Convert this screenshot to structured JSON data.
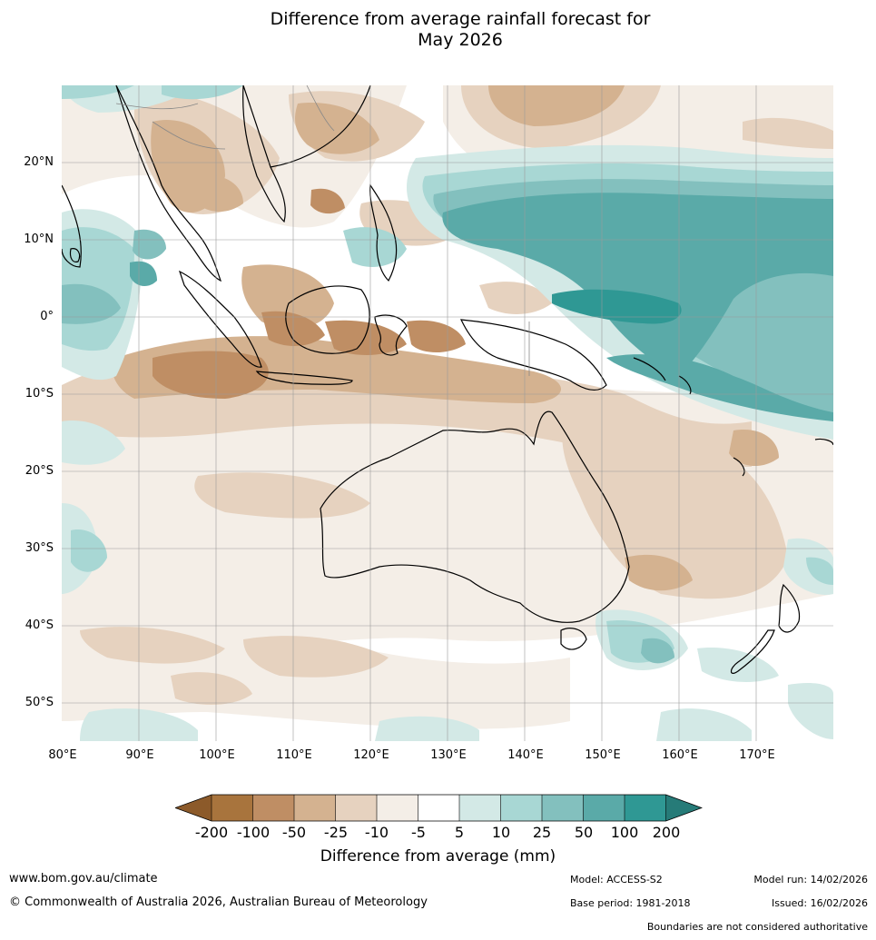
{
  "title": {
    "line1": "Difference from average rainfall forecast for",
    "line2": "May 2026"
  },
  "map": {
    "region": "Australia, Indonesia, Western Pacific",
    "lat_labels": [
      "20°N",
      "10°N",
      "0°",
      "10°S",
      "20°S",
      "30°S",
      "40°S",
      "50°S"
    ],
    "lon_labels": [
      "80°E",
      "90°E",
      "100°E",
      "110°E",
      "120°E",
      "130°E",
      "140°E",
      "150°E",
      "160°E",
      "170°E"
    ]
  },
  "colorbar": {
    "ticks": [
      "-200",
      "-100",
      "-50",
      "-25",
      "-10",
      "-5",
      "5",
      "10",
      "25",
      "50",
      "100",
      "200"
    ],
    "colors": {
      "lt_minus200": "#8c5a2a",
      "minus200_minus100": "#a8743d",
      "minus100_minus50": "#bf8e64",
      "minus50_minus25": "#d4b290",
      "minus25_minus10": "#e6d2bf",
      "minus10_minus5": "#f4eee7",
      "minus5_5": "#ffffff",
      "p5_10": "#d3e9e6",
      "p10_25": "#a8d7d4",
      "p25_50": "#83c0be",
      "p50_100": "#5aaaa8",
      "p100_200": "#2f9894",
      "gt_200": "#267b78"
    },
    "label": "Difference from average (mm)"
  },
  "footer": {
    "url": "www.bom.gov.au/climate",
    "copyright": "© Commonwealth of Australia 2026, Australian Bureau of Meteorology",
    "model": "Model: ACCESS-S2",
    "base_period": "Base period: 1981-2018",
    "model_run": "Model run: 14/02/2026",
    "issued": "Issued: 16/02/2026",
    "disclaimer": "Boundaries are not considered authoritative"
  }
}
